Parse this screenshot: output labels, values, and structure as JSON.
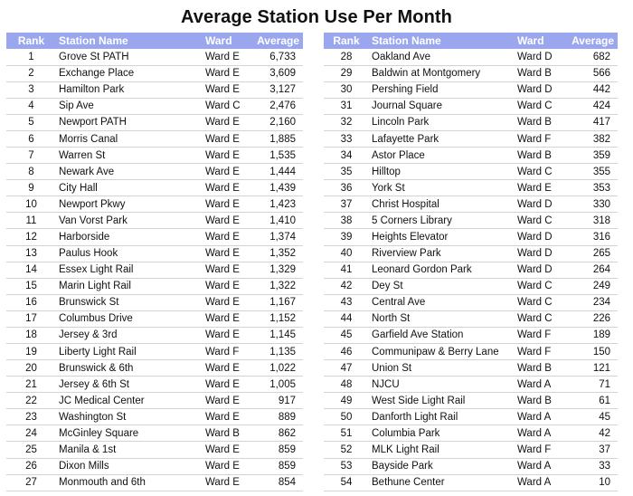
{
  "title": "Average Station Use Per Month",
  "headers": {
    "rank": "Rank",
    "station": "Station Name",
    "ward": "Ward",
    "average": "Average"
  },
  "left_rows": [
    {
      "rank": "1",
      "station": "Grove St PATH",
      "ward": "Ward E",
      "average": "6,733"
    },
    {
      "rank": "2",
      "station": "Exchange Place",
      "ward": "Ward E",
      "average": "3,609"
    },
    {
      "rank": "3",
      "station": "Hamilton Park",
      "ward": "Ward E",
      "average": "3,127"
    },
    {
      "rank": "4",
      "station": "Sip Ave",
      "ward": "Ward C",
      "average": "2,476"
    },
    {
      "rank": "5",
      "station": "Newport PATH",
      "ward": "Ward E",
      "average": "2,160"
    },
    {
      "rank": "6",
      "station": "Morris Canal",
      "ward": "Ward E",
      "average": "1,885"
    },
    {
      "rank": "7",
      "station": "Warren St",
      "ward": "Ward E",
      "average": "1,535"
    },
    {
      "rank": "8",
      "station": "Newark Ave",
      "ward": "Ward E",
      "average": "1,444"
    },
    {
      "rank": "9",
      "station": "City Hall",
      "ward": "Ward E",
      "average": "1,439"
    },
    {
      "rank": "10",
      "station": "Newport Pkwy",
      "ward": "Ward E",
      "average": "1,423"
    },
    {
      "rank": "11",
      "station": "Van Vorst Park",
      "ward": "Ward E",
      "average": "1,410"
    },
    {
      "rank": "12",
      "station": "Harborside",
      "ward": "Ward E",
      "average": "1,374"
    },
    {
      "rank": "13",
      "station": "Paulus Hook",
      "ward": "Ward E",
      "average": "1,352"
    },
    {
      "rank": "14",
      "station": "Essex Light Rail",
      "ward": "Ward E",
      "average": "1,329"
    },
    {
      "rank": "15",
      "station": "Marin Light Rail",
      "ward": "Ward E",
      "average": "1,322"
    },
    {
      "rank": "16",
      "station": "Brunswick St",
      "ward": "Ward E",
      "average": "1,167"
    },
    {
      "rank": "17",
      "station": "Columbus Drive",
      "ward": "Ward E",
      "average": "1,152"
    },
    {
      "rank": "18",
      "station": "Jersey & 3rd",
      "ward": "Ward E",
      "average": "1,145"
    },
    {
      "rank": "19",
      "station": "Liberty Light Rail",
      "ward": "Ward F",
      "average": "1,135"
    },
    {
      "rank": "20",
      "station": "Brunswick & 6th",
      "ward": "Ward E",
      "average": "1,022"
    },
    {
      "rank": "21",
      "station": "Jersey & 6th St",
      "ward": "Ward E",
      "average": "1,005"
    },
    {
      "rank": "22",
      "station": "JC Medical Center",
      "ward": "Ward E",
      "average": "917"
    },
    {
      "rank": "23",
      "station": "Washington St",
      "ward": "Ward E",
      "average": "889"
    },
    {
      "rank": "24",
      "station": "McGinley Square",
      "ward": "Ward B",
      "average": "862"
    },
    {
      "rank": "25",
      "station": "Manila & 1st",
      "ward": "Ward E",
      "average": "859"
    },
    {
      "rank": "26",
      "station": "Dixon Mills",
      "ward": "Ward E",
      "average": "859"
    },
    {
      "rank": "27",
      "station": "Monmouth and 6th",
      "ward": "Ward E",
      "average": "854"
    }
  ],
  "right_rows": [
    {
      "rank": "28",
      "station": "Oakland Ave",
      "ward": "Ward D",
      "average": "682"
    },
    {
      "rank": "29",
      "station": "Baldwin at Montgomery",
      "ward": "Ward B",
      "average": "566"
    },
    {
      "rank": "30",
      "station": "Pershing Field",
      "ward": "Ward D",
      "average": "442"
    },
    {
      "rank": "31",
      "station": "Journal Square",
      "ward": "Ward C",
      "average": "424"
    },
    {
      "rank": "32",
      "station": "Lincoln Park",
      "ward": "Ward B",
      "average": "417"
    },
    {
      "rank": "33",
      "station": "Lafayette Park",
      "ward": "Ward F",
      "average": "382"
    },
    {
      "rank": "34",
      "station": "Astor Place",
      "ward": "Ward B",
      "average": "359"
    },
    {
      "rank": "35",
      "station": "Hilltop",
      "ward": "Ward C",
      "average": "355"
    },
    {
      "rank": "36",
      "station": "York St",
      "ward": "Ward E",
      "average": "353"
    },
    {
      "rank": "37",
      "station": "Christ Hospital",
      "ward": "Ward D",
      "average": "330"
    },
    {
      "rank": "38",
      "station": "5 Corners Library",
      "ward": "Ward C",
      "average": "318"
    },
    {
      "rank": "39",
      "station": "Heights Elevator",
      "ward": "Ward D",
      "average": "316"
    },
    {
      "rank": "40",
      "station": "Riverview Park",
      "ward": "Ward D",
      "average": "265"
    },
    {
      "rank": "41",
      "station": "Leonard Gordon Park",
      "ward": "Ward D",
      "average": "264"
    },
    {
      "rank": "42",
      "station": "Dey St",
      "ward": "Ward C",
      "average": "249"
    },
    {
      "rank": "43",
      "station": "Central Ave",
      "ward": "Ward C",
      "average": "234"
    },
    {
      "rank": "44",
      "station": "North St",
      "ward": "Ward C",
      "average": "226"
    },
    {
      "rank": "45",
      "station": "Garfield Ave Station",
      "ward": "Ward F",
      "average": "189"
    },
    {
      "rank": "46",
      "station": "Communipaw & Berry Lane",
      "ward": "Ward F",
      "average": "150"
    },
    {
      "rank": "47",
      "station": "Union St",
      "ward": "Ward B",
      "average": "121"
    },
    {
      "rank": "48",
      "station": "NJCU",
      "ward": "Ward A",
      "average": "71"
    },
    {
      "rank": "49",
      "station": "West Side Light Rail",
      "ward": "Ward B",
      "average": "61"
    },
    {
      "rank": "50",
      "station": "Danforth Light Rail",
      "ward": "Ward A",
      "average": "45"
    },
    {
      "rank": "51",
      "station": "Columbia Park",
      "ward": "Ward A",
      "average": "42"
    },
    {
      "rank": "52",
      "station": "MLK Light Rail",
      "ward": "Ward F",
      "average": "37"
    },
    {
      "rank": "53",
      "station": "Bayside Park",
      "ward": "Ward A",
      "average": "33"
    },
    {
      "rank": "54",
      "station": "Bethune Center",
      "ward": "Ward A",
      "average": "10"
    }
  ]
}
